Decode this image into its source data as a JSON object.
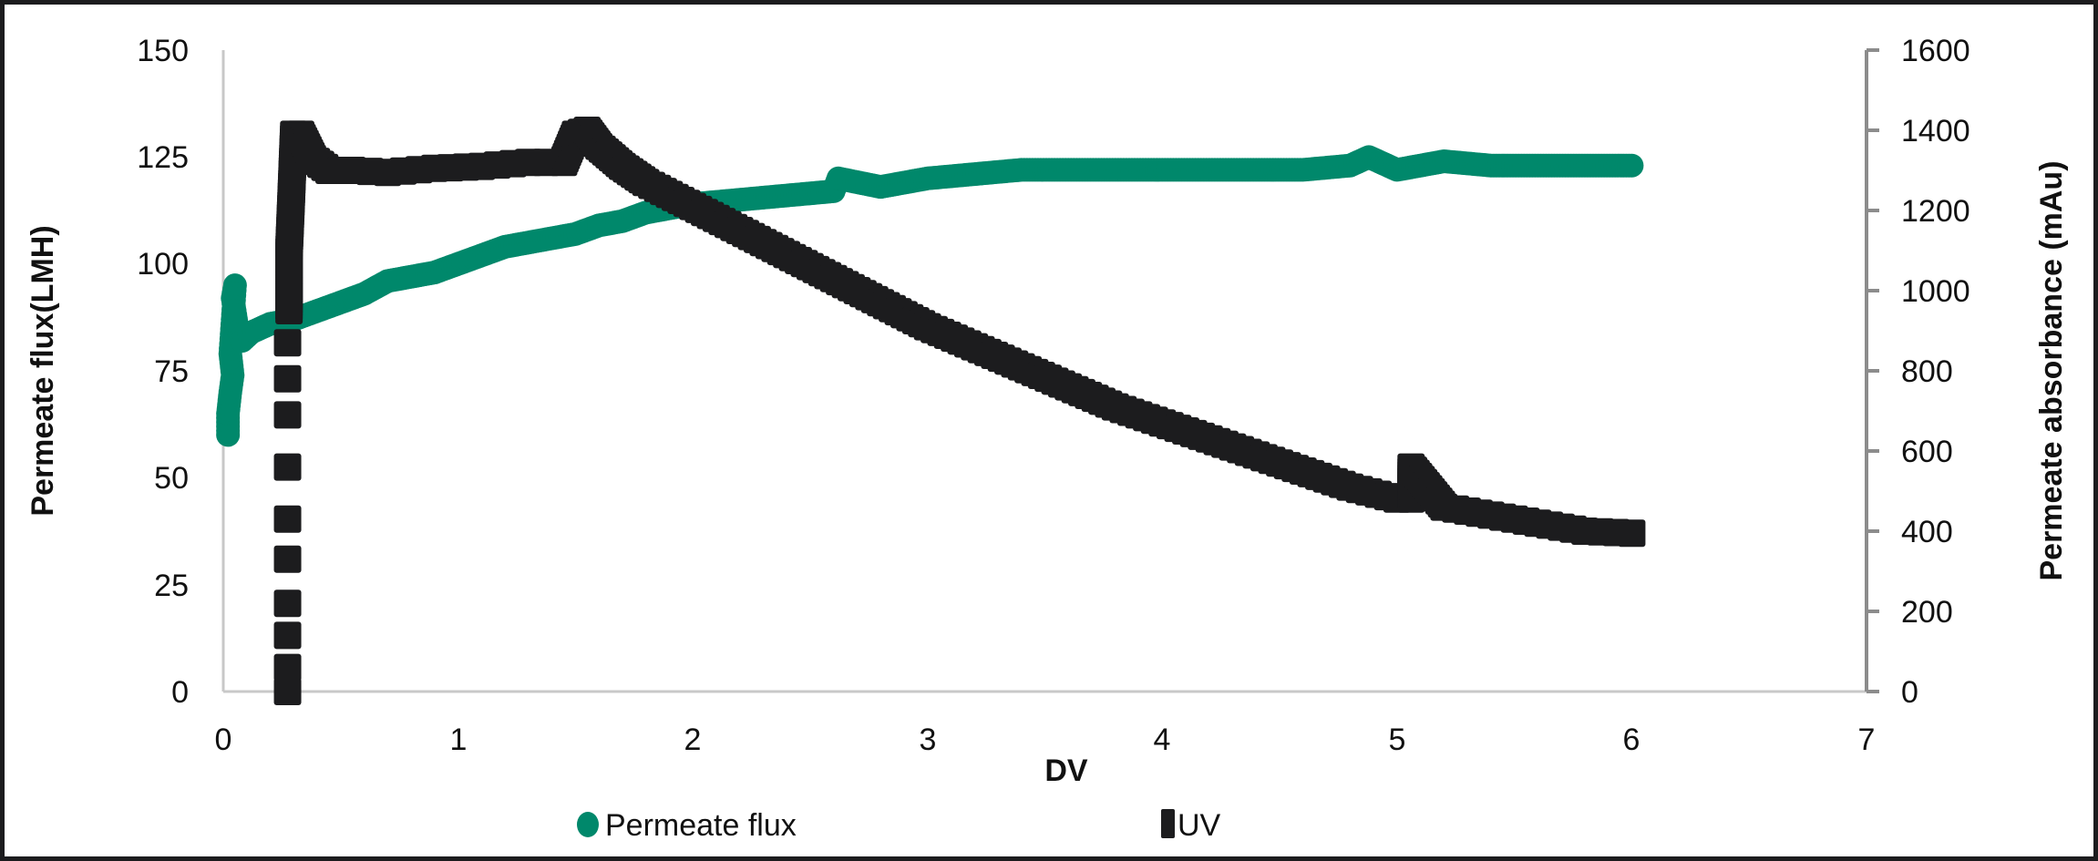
{
  "chart_data": {
    "type": "scatter",
    "title": "",
    "xlabel": "DV",
    "ylabel": "Permeate flux(LMH)",
    "y2label": "Permeate absorbance (mAu)",
    "xlim": [
      0,
      7
    ],
    "ylim": [
      0,
      150
    ],
    "y2lim": [
      0,
      1600
    ],
    "x_ticks": [
      "0",
      "1",
      "2",
      "3",
      "4",
      "5",
      "6",
      "7"
    ],
    "y_ticks": [
      "0",
      "25",
      "50",
      "75",
      "100",
      "125",
      "150"
    ],
    "y2_ticks": [
      "0",
      "200",
      "400",
      "600",
      "800",
      "1000",
      "1200",
      "1400",
      "1600"
    ],
    "grid": false,
    "legend_position": "bottom",
    "series": [
      {
        "name": "Permeate flux",
        "axis": "left",
        "marker": "circle",
        "color": "#00886b",
        "x": [
          0.02,
          0.02,
          0.03,
          0.04,
          0.03,
          0.05,
          0.04,
          0.06,
          0.08,
          0.12,
          0.2,
          0.3,
          0.35,
          0.4,
          0.5,
          0.6,
          0.7,
          0.8,
          0.9,
          1.0,
          1.1,
          1.2,
          1.3,
          1.4,
          1.5,
          1.6,
          1.7,
          1.8,
          1.9,
          2.0,
          2.2,
          2.4,
          2.6,
          2.62,
          2.8,
          2.9,
          3.0,
          3.2,
          3.4,
          3.6,
          3.8,
          4.0,
          4.2,
          4.4,
          4.6,
          4.8,
          4.88,
          5.0,
          5.1,
          5.2,
          5.4,
          5.6,
          5.8,
          6.0
        ],
        "y": [
          60,
          65,
          70,
          74,
          79,
          95,
          92,
          85,
          82,
          84,
          86,
          87,
          88,
          89,
          91,
          93,
          96,
          97,
          98,
          100,
          102,
          104,
          105,
          106,
          107,
          109,
          110,
          112,
          113,
          114,
          115,
          116,
          117,
          120,
          118,
          119,
          120,
          121,
          122,
          122,
          122,
          122,
          122,
          122,
          122,
          123,
          125,
          122,
          123,
          124,
          123,
          123,
          123,
          123
        ]
      },
      {
        "name": "UV",
        "axis": "right",
        "marker": "square",
        "color": "#1c1c1e",
        "x": [
          0.27,
          0.27,
          0.27,
          0.27,
          0.27,
          0.27,
          0.27,
          0.27,
          0.27,
          0.27,
          0.28,
          0.28,
          0.29,
          0.3,
          0.33,
          0.38,
          0.45,
          0.55,
          0.7,
          0.9,
          1.1,
          1.3,
          1.45,
          1.5,
          1.55,
          1.6,
          1.7,
          1.8,
          2.0,
          2.2,
          2.4,
          2.6,
          2.8,
          3.0,
          3.2,
          3.4,
          3.6,
          3.8,
          4.0,
          4.2,
          4.4,
          4.6,
          4.8,
          5.0,
          5.06,
          5.06,
          5.2,
          5.4,
          5.6,
          5.8,
          6.0
        ],
        "y": [
          0,
          60,
          140,
          220,
          330,
          430,
          560,
          690,
          780,
          870,
          950,
          1100,
          1240,
          1390,
          1390,
          1330,
          1300,
          1300,
          1295,
          1305,
          1310,
          1320,
          1320,
          1390,
          1400,
          1360,
          1310,
          1270,
          1210,
          1150,
          1090,
          1030,
          970,
          910,
          860,
          810,
          760,
          710,
          670,
          630,
          590,
          550,
          510,
          480,
          480,
          560,
          460,
          440,
          420,
          400,
          395
        ]
      }
    ]
  },
  "axes": {
    "x_title": "DV",
    "y_left_title": "Permeate flux(LMH)",
    "y_right_title": "Permeate absorbance (mAu)",
    "x_ticks": [
      "0",
      "1",
      "2",
      "3",
      "4",
      "5",
      "6",
      "7"
    ],
    "y_left_ticks": [
      "0",
      "25",
      "50",
      "75",
      "100",
      "125",
      "150"
    ],
    "y_right_ticks": [
      "0",
      "200",
      "400",
      "600",
      "800",
      "1000",
      "1200",
      "1400",
      "1600"
    ]
  },
  "legend": {
    "items": [
      {
        "label": "Permeate flux",
        "color": "#00886b",
        "marker": "circle-marker-icon"
      },
      {
        "label": "UV",
        "color": "#1c1c1e",
        "marker": "square-marker-icon"
      }
    ]
  },
  "colors": {
    "flux": "#00886b",
    "uv": "#1c1c1e",
    "axis_left": "#c8c8c8",
    "axis_right": "#8c8c8c",
    "frame": "#1c1c1e"
  }
}
